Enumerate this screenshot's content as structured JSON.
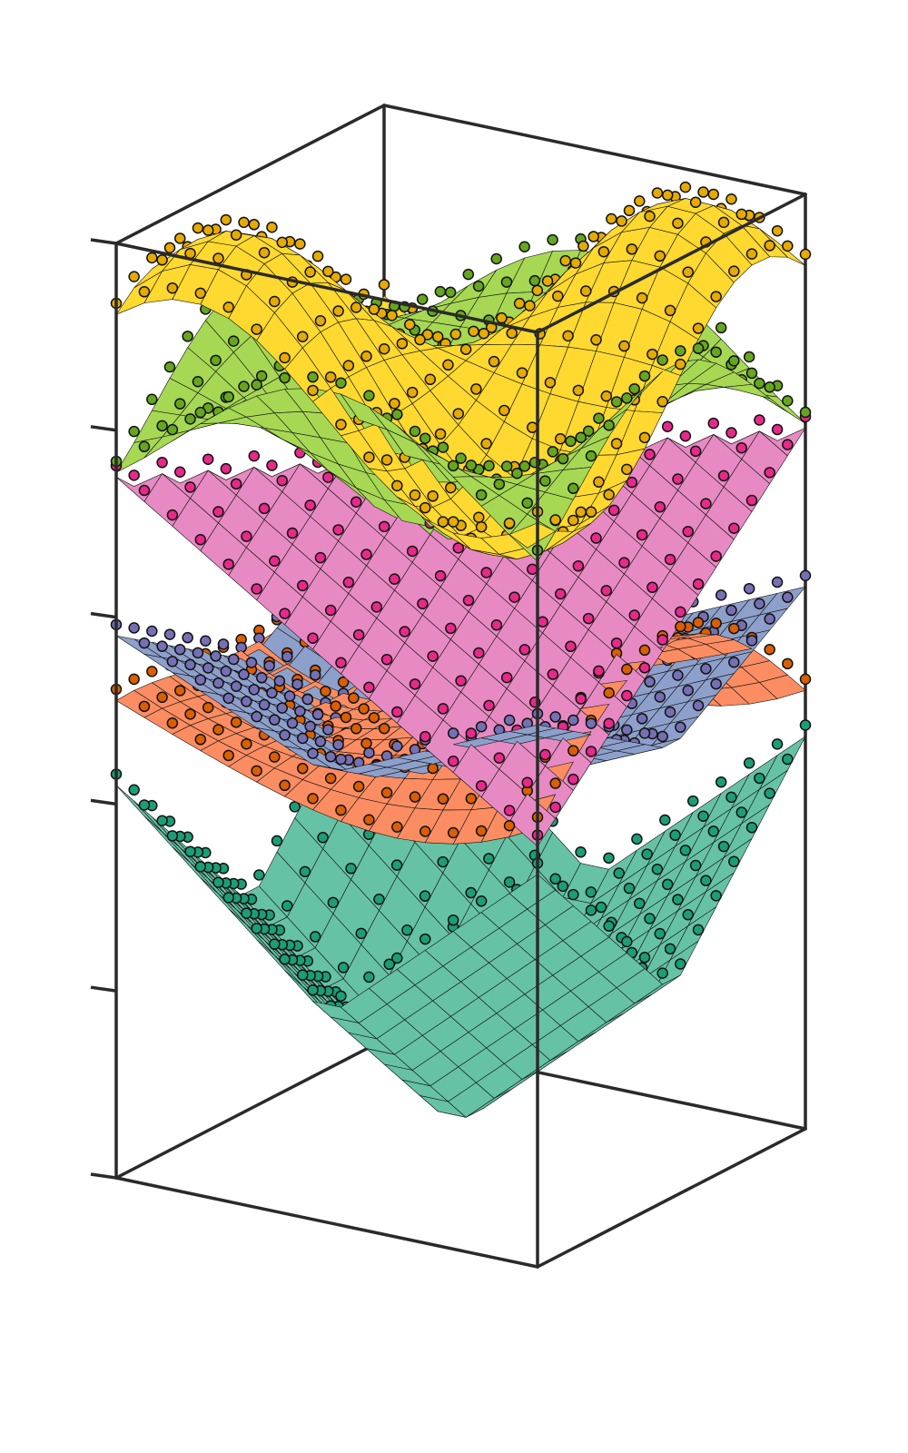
{
  "chart_data": {
    "type": "surface",
    "title": "",
    "xlabel": "",
    "ylabel": "",
    "zlabel": "",
    "z_tick_count": 6,
    "tick_labels_shown": false,
    "grid": false,
    "legend": "none",
    "grid_resolution": 15,
    "series": [
      {
        "surface_color": "#66c2a5",
        "marker_color": "#1b9e77",
        "shape": "cone",
        "z_min": 0.02,
        "z_max": 0.42
      },
      {
        "surface_color": "#fc8d62",
        "marker_color": "#d95f02",
        "shape": "saddle",
        "z_min": 0.38,
        "z_max": 0.6
      },
      {
        "surface_color": "#8da0cb",
        "marker_color": "#7570b3",
        "shape": "cone",
        "z_min": 0.38,
        "z_max": 0.58
      },
      {
        "surface_color": "#e78ac3",
        "marker_color": "#e7298a",
        "shape": "ridge",
        "z_min": 0.45,
        "z_max": 0.75
      },
      {
        "surface_color": "#a6d854",
        "marker_color": "#66a61e",
        "shape": "bowl",
        "z_min": 0.66,
        "z_max": 0.95
      },
      {
        "surface_color": "#ffd92f",
        "marker_color": "#e6ab02",
        "shape": "peaks",
        "z_min": 0.72,
        "z_max": 1.0
      }
    ]
  }
}
